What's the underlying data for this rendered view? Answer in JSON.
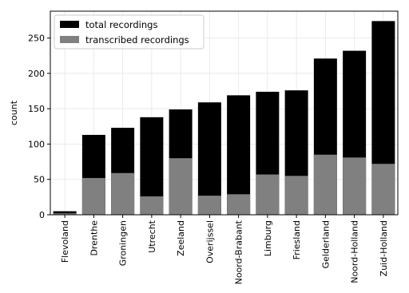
{
  "chart_data": {
    "type": "bar",
    "stacked": false,
    "overlay": true,
    "categories": [
      "Flevoland",
      "Drenthe",
      "Groningen",
      "Utrecht",
      "Zeeland",
      "Overijssel",
      "Noord-Brabant",
      "Limburg",
      "Friesland",
      "Gelderland",
      "Noord-Holland",
      "Zuid-Holland"
    ],
    "series": [
      {
        "name": "total recordings",
        "color": "#000000",
        "values": [
          5,
          113,
          123,
          138,
          149,
          159,
          169,
          174,
          176,
          221,
          232,
          274
        ]
      },
      {
        "name": "transcribed recordings",
        "color": "#808080",
        "values": [
          2,
          52,
          59,
          26,
          80,
          27,
          29,
          57,
          55,
          85,
          81,
          72
        ]
      }
    ],
    "xlabel": "",
    "ylabel": "count",
    "ylim": [
      0,
      288
    ],
    "yticks": [
      0,
      50,
      100,
      150,
      200,
      250
    ],
    "grid": true,
    "legend_position": "top-left"
  }
}
